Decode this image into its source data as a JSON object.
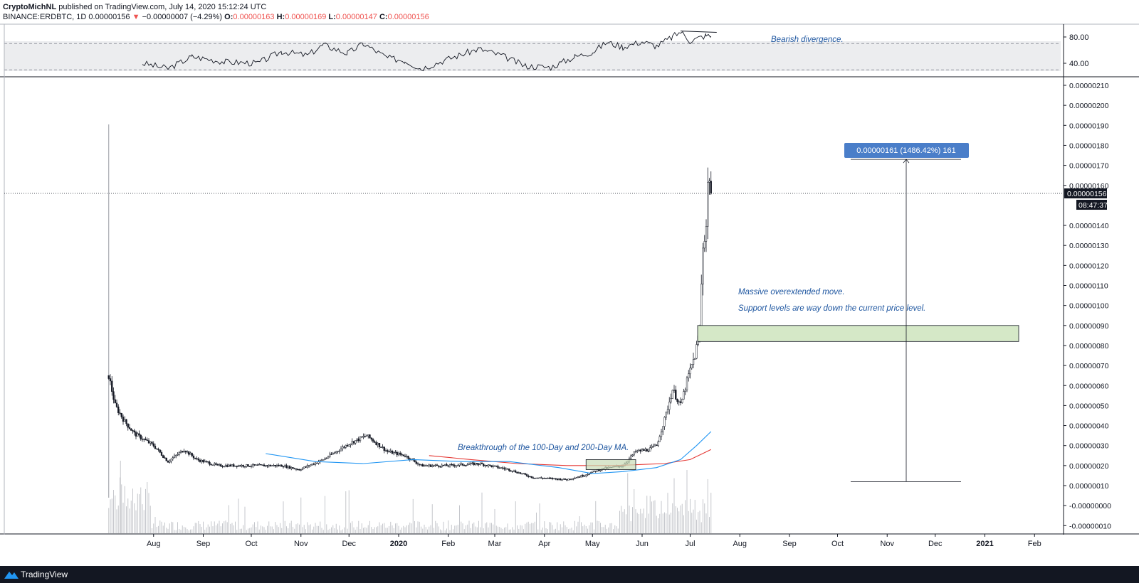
{
  "header": {
    "author": "CryptoMichNL",
    "published": "published on TradingView.com, July 14, 2020 15:12:24 UTC",
    "symbol": "BINANCE:ERDBTC, 1D",
    "last": "0.00000156",
    "change": "−0.00000007 (−4.29%)",
    "open_label": "O:",
    "open": "0.00000163",
    "high_label": "H:",
    "high": "0.00000169",
    "low_label": "L:",
    "low": "0.00000147",
    "close_label": "C:",
    "close": "0.00000156"
  },
  "footer": {
    "brand": "TradingView"
  },
  "chart_data": {
    "type": "candlestick",
    "symbol": "BINANCE:ERDBTC",
    "interval": "1D",
    "x_tick_labels": [
      "Aug",
      "Sep",
      "Oct",
      "Nov",
      "Dec",
      "2020",
      "Feb",
      "Mar",
      "Apr",
      "May",
      "Jun",
      "Jul",
      "Aug",
      "Sep",
      "Oct",
      "Nov",
      "Dec",
      "2021",
      "Feb"
    ],
    "ylim": [
      -1e-07,
      2.1e-06
    ],
    "y_tick_labels": [
      "0.00000210",
      "0.00000200",
      "0.00000190",
      "0.00000180",
      "0.00000170",
      "0.00000160",
      "0.00000140",
      "0.00000130",
      "0.00000120",
      "0.00000110",
      "0.00000100",
      "0.00000090",
      "0.00000080",
      "0.00000070",
      "0.00000060",
      "0.00000050",
      "0.00000040",
      "0.00000030",
      "0.00000020",
      "0.00000010",
      "-0.00000000",
      "-0.00000010"
    ],
    "current_price_label": "0.00000156",
    "current_price": 1.56e-06,
    "countdown": "08:47:37",
    "price_path": [
      [
        "2019-07-04",
        6.5e-07
      ],
      [
        "2019-07-08",
        5e-07
      ],
      [
        "2019-07-14",
        4.2e-07
      ],
      [
        "2019-07-20",
        3.6e-07
      ],
      [
        "2019-08-01",
        3e-07
      ],
      [
        "2019-08-10",
        2.2e-07
      ],
      [
        "2019-08-20",
        2.8e-07
      ],
      [
        "2019-08-28",
        2.3e-07
      ],
      [
        "2019-09-10",
        2e-07
      ],
      [
        "2019-10-01",
        2e-07
      ],
      [
        "2019-10-20",
        2e-07
      ],
      [
        "2019-10-31",
        1.8e-07
      ],
      [
        "2019-11-15",
        2.3e-07
      ],
      [
        "2019-12-01",
        3.1e-07
      ],
      [
        "2019-12-12",
        3.5e-07
      ],
      [
        "2019-12-25",
        2.7e-07
      ],
      [
        "2020-01-05",
        2.5e-07
      ],
      [
        "2020-01-15",
        2e-07
      ],
      [
        "2020-02-01",
        2e-07
      ],
      [
        "2020-02-20",
        2.1e-07
      ],
      [
        "2020-03-10",
        1.8e-07
      ],
      [
        "2020-03-25",
        1.4e-07
      ],
      [
        "2020-04-15",
        1.3e-07
      ],
      [
        "2020-04-25",
        1.5e-07
      ],
      [
        "2020-05-05",
        1.8e-07
      ],
      [
        "2020-05-20",
        2e-07
      ],
      [
        "2020-05-28",
        2.7e-07
      ],
      [
        "2020-06-05",
        2.8e-07
      ],
      [
        "2020-06-10",
        3e-07
      ],
      [
        "2020-06-15",
        4.3e-07
      ],
      [
        "2020-06-20",
        5.8e-07
      ],
      [
        "2020-06-25",
        5e-07
      ],
      [
        "2020-06-30",
        6.5e-07
      ],
      [
        "2020-07-04",
        7.5e-07
      ],
      [
        "2020-07-07",
        8.8e-07
      ],
      [
        "2020-07-08",
        1.1e-06
      ],
      [
        "2020-07-09",
        1.3e-06
      ],
      [
        "2020-07-11",
        1.4e-06
      ],
      [
        "2020-07-12",
        1.6e-06
      ],
      [
        "2020-07-13",
        1.65e-06
      ],
      [
        "2020-07-14",
        1.56e-06
      ]
    ],
    "ma_100": [
      [
        "2019-10-10",
        2.6e-07
      ],
      [
        "2019-11-10",
        2.2e-07
      ],
      [
        "2019-12-10",
        2.1e-07
      ],
      [
        "2020-01-10",
        2.3e-07
      ],
      [
        "2020-02-10",
        2.2e-07
      ],
      [
        "2020-03-10",
        2.2e-07
      ],
      [
        "2020-04-10",
        1.9e-07
      ],
      [
        "2020-05-01",
        1.6e-07
      ],
      [
        "2020-05-20",
        1.7e-07
      ],
      [
        "2020-06-10",
        1.9e-07
      ],
      [
        "2020-06-25",
        2.3e-07
      ],
      [
        "2020-07-05",
        3e-07
      ],
      [
        "2020-07-14",
        3.7e-07
      ]
    ],
    "ma_200": [
      [
        "2020-01-20",
        2.5e-07
      ],
      [
        "2020-02-15",
        2.3e-07
      ],
      [
        "2020-03-15",
        2.1e-07
      ],
      [
        "2020-04-15",
        2e-07
      ],
      [
        "2020-05-15",
        2e-07
      ],
      [
        "2020-06-15",
        2.1e-07
      ],
      [
        "2020-07-01",
        2.3e-07
      ],
      [
        "2020-07-14",
        2.8e-07
      ]
    ],
    "rsi": {
      "y_tick_labels": [
        "80.00",
        "40.00"
      ],
      "upper": 70,
      "lower": 30,
      "points": [
        [
          "2019-07-25",
          40
        ],
        [
          "2019-08-10",
          32
        ],
        [
          "2019-08-25",
          50
        ],
        [
          "2019-09-15",
          42
        ],
        [
          "2019-10-05",
          40
        ],
        [
          "2019-10-20",
          58
        ],
        [
          "2019-11-05",
          52
        ],
        [
          "2019-11-15",
          68
        ],
        [
          "2019-11-30",
          55
        ],
        [
          "2019-12-10",
          70
        ],
        [
          "2019-12-25",
          48
        ],
        [
          "2020-01-05",
          44
        ],
        [
          "2020-01-15",
          32
        ],
        [
          "2020-02-05",
          50
        ],
        [
          "2020-02-20",
          62
        ],
        [
          "2020-03-05",
          52
        ],
        [
          "2020-03-20",
          36
        ],
        [
          "2020-04-05",
          34
        ],
        [
          "2020-04-20",
          50
        ],
        [
          "2020-05-01",
          57
        ],
        [
          "2020-05-10",
          72
        ],
        [
          "2020-05-20",
          65
        ],
        [
          "2020-06-01",
          73
        ],
        [
          "2020-06-10",
          66
        ],
        [
          "2020-06-20",
          80
        ],
        [
          "2020-06-25",
          88
        ],
        [
          "2020-07-01",
          74
        ],
        [
          "2020-07-08",
          80
        ],
        [
          "2020-07-11",
          82
        ],
        [
          "2020-07-14",
          81
        ]
      ]
    },
    "annotations": {
      "bearish_divergence": "Bearish divergence.",
      "massive_move": "Massive overextended move.",
      "support_levels": "Support levels are way down the current price level.",
      "breakthrough": "Breakthrough of the 100-Day and 200-Day MA.",
      "measure_label": "0.00000161 (1486.42%) 161"
    },
    "colors": {
      "ma_100": "#2196f3",
      "ma_200": "#e53935",
      "annotation_text": "#1e56a0",
      "measure_label_bg": "#4a7ec9",
      "support_zone": "#d5e8c7"
    }
  }
}
